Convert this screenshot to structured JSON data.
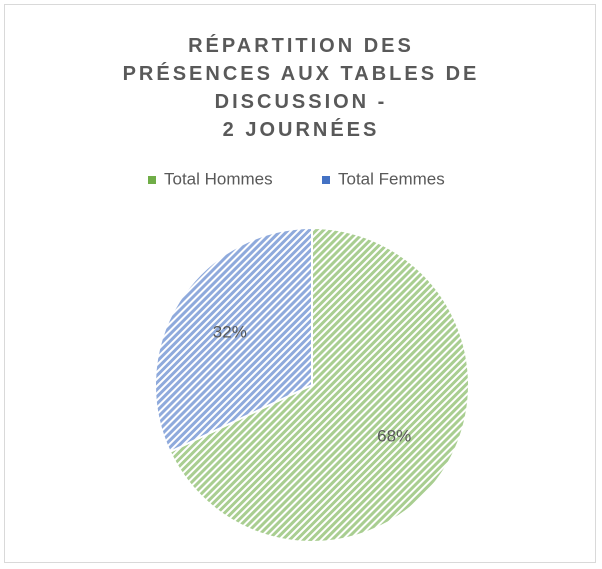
{
  "chart_data": {
    "type": "pie",
    "title": "RÉPARTITION DES\nPRÉSENCES AUX TABLES DE\nDISCUSSION -\n2 JOURNÉES",
    "categories": [
      "Total Hommes",
      "Total Femmes"
    ],
    "values": [
      68,
      32
    ],
    "value_labels": [
      "68%",
      "32%"
    ],
    "colors": [
      "#70ad47",
      "#4472c4"
    ],
    "legend": "top"
  }
}
